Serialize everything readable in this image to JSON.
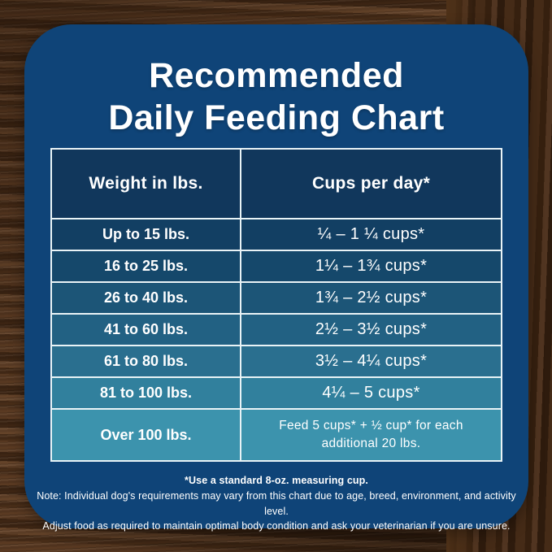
{
  "title": {
    "line1": "Recommended",
    "line2": "Daily Feeding Chart"
  },
  "chart_data": {
    "type": "table",
    "title": "Recommended Daily Feeding Chart",
    "columns": [
      "Weight in lbs.",
      "Cups per day*"
    ],
    "rows": [
      [
        "Up to 15 lbs.",
        "¼ – 1 ¼ cups*"
      ],
      [
        "16 to 25 lbs.",
        "1¼ – 1¾ cups*"
      ],
      [
        "26 to 40 lbs.",
        "1¾ – 2½ cups*"
      ],
      [
        "41 to 60 lbs.",
        "2½ – 3½ cups*"
      ],
      [
        "61 to 80 lbs.",
        "3½ – 4¼ cups*"
      ],
      [
        "81 to 100 lbs.",
        "4¼ – 5 cups*"
      ],
      [
        "Over 100 lbs.",
        "Feed 5 cups* + ½ cup* for each additional 20 lbs."
      ]
    ],
    "footnotes": [
      "*Use a standard 8-oz. measuring cup.",
      "Note: Individual dog's requirements may vary from this chart due to age, breed, environment, and activity level.",
      "Adjust food as required to maintain optimal body condition and ask your veterinarian if you are unsure."
    ]
  },
  "table": {
    "headers": [
      "Weight in lbs.",
      "Cups per day*"
    ],
    "header_color": "#11375c",
    "row_colors": [
      "#123f63",
      "#15486b",
      "#1c5577",
      "#226183",
      "#2a6f8f",
      "#31809d",
      "#3c93ad"
    ]
  },
  "notes": {
    "line1": "*Use a standard 8-oz. measuring cup.",
    "line2": "Note: Individual dog's requirements may vary from this chart due to age, breed, environment, and activity level.",
    "line3": "Adjust food as required to maintain optimal body condition and ask your veterinarian if you are unsure."
  },
  "colors": {
    "card_background": "#0f4478",
    "table_border": "#e9f3f6",
    "text": "#ffffff",
    "wood_base": "#4e3118"
  }
}
